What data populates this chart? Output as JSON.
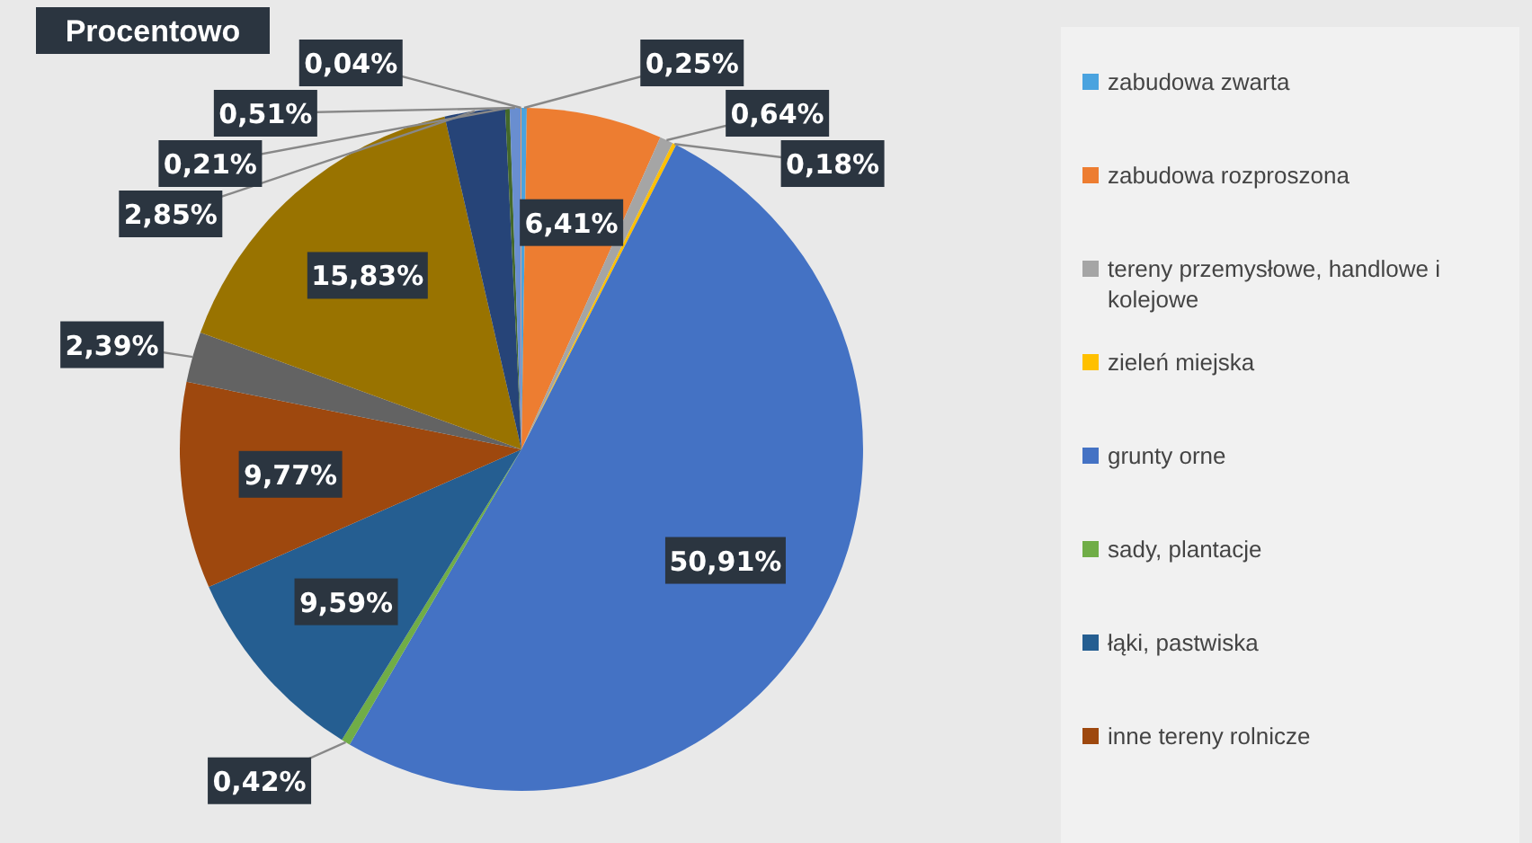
{
  "chart_data": {
    "type": "pie",
    "title": "Procentowo",
    "categories": [
      "zabudowa zwarta",
      "zabudowa rozproszona",
      "tereny przemysłowe, handlowe i kolejowe",
      "zieleń miejska",
      "grunty orne",
      "sady, plantacje",
      "łąki, pastwiska",
      "inne tereny rolnicze",
      null,
      null,
      null,
      null,
      null,
      null
    ],
    "values": [
      0.25,
      6.41,
      0.64,
      0.18,
      50.91,
      0.42,
      9.59,
      9.77,
      2.39,
      15.83,
      2.85,
      0.21,
      0.51,
      0.04
    ],
    "value_labels": [
      "0,25%",
      "6,41%",
      "0,64%",
      "0,18%",
      "50,91%",
      "0,42%",
      "9,59%",
      "9,77%",
      "2,39%",
      "15,83%",
      "2,85%",
      "0,21%",
      "0,51%",
      "0,04%"
    ],
    "colors": [
      "#4aa3df",
      "#ed7d31",
      "#a5a5a5",
      "#ffc000",
      "#4472c4",
      "#70ad47",
      "#255e91",
      "#9e480e",
      "#636363",
      "#997300",
      "#264478",
      "#43682b",
      "#698ed0",
      "#f1975a"
    ],
    "legend": "right"
  }
}
